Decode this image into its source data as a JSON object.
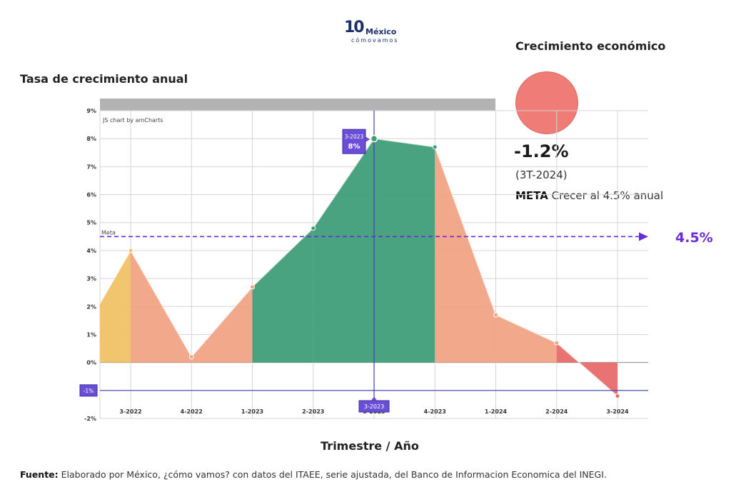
{
  "logo": {
    "top": "10",
    "country": "México",
    "tagline": "cómovamos"
  },
  "chart_title": "Tasa de crecimiento anual",
  "kpi": {
    "title": "Crecimiento económico",
    "value": "-1.2%",
    "period": "(3T-2024)",
    "goal_bold": "META",
    "goal_text": " Crecer al 4.5% anual",
    "circle_color": "#ef7c77"
  },
  "meta_label": "4.5%",
  "x_title": "Trimestre / Año",
  "source": {
    "bold": "Fuente:",
    "text": " Elaborado por México, ¿cómo vamos? con datos del ITAEE, serie ajustada, del Banco de Informacion Economica del INEGI."
  },
  "chart_data": {
    "type": "area",
    "credit": "JS chart by amCharts",
    "categories": [
      "3-2022",
      "4-2022",
      "1-2023",
      "2-2023",
      "3-2023",
      "4-2023",
      "1-2024",
      "2-2024",
      "3-2024"
    ],
    "series": [
      {
        "values": [
          4.0,
          0.2,
          2.7,
          4.8,
          8.0,
          7.7,
          1.7,
          0.7,
          -1.2
        ]
      }
    ],
    "start_value": 2.1,
    "ylim": [
      -2,
      9
    ],
    "yticks": [
      -2,
      -1,
      0,
      1,
      2,
      3,
      4,
      5,
      6,
      7,
      8,
      9
    ],
    "ytick_labels": [
      "-2%",
      "-1%",
      "0%",
      "1%",
      "2%",
      "3%",
      "4%",
      "5%",
      "6%",
      "7%",
      "8%",
      "9%"
    ],
    "goal": {
      "label": "Meta",
      "value": 4.5
    },
    "cursor": {
      "category": "3-2023",
      "tooltip_category": "3-2023",
      "tooltip_value": "8%",
      "y_label": "-1%"
    },
    "segment_colors": [
      "#f0c265",
      "#f0a385",
      "#f0a385",
      "#3f9e7a",
      "#3f9e7a",
      "#3f9e7a",
      "#f0a385",
      "#f0a385",
      "#e86a6a"
    ],
    "colors": {
      "green": "#3f9e7a",
      "salmon": "#f0a385",
      "yellow": "#f0c265",
      "red": "#e86a6a",
      "meta": "#6a2bd9",
      "cursor": "#3f3fae"
    },
    "grid": true
  }
}
